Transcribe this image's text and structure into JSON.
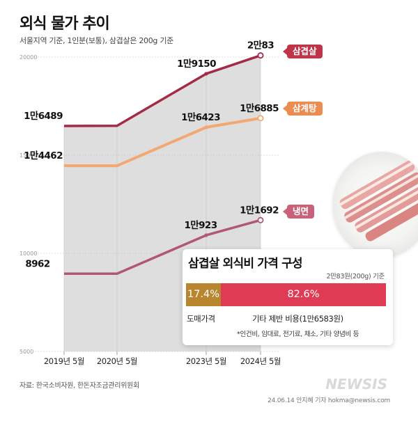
{
  "header": {
    "title": "외식 물가 추이",
    "subtitle": "서울지역 기준, 1인분(보통), 삼겹살은 200g 기준"
  },
  "chart_data": {
    "type": "line",
    "x": [
      "2019년 5월",
      "2020년 5월",
      "2023년 5월",
      "2024년 5월"
    ],
    "y_ticks": [
      "20000",
      "15000",
      "10000",
      "5000"
    ],
    "ylim": [
      5000,
      20000
    ],
    "grid": true,
    "series": [
      {
        "name": "삼겹살",
        "values": [
          16489,
          16500,
          19150,
          20083
        ],
        "labels": [
          "1만6489",
          "",
          "1만9150",
          "2만83"
        ],
        "color": "#a52a45"
      },
      {
        "name": "삼계탕",
        "values": [
          14462,
          14462,
          16423,
          16885
        ],
        "labels": [
          "1만4462",
          "",
          "1만6423",
          "1만6885"
        ],
        "color": "#f3a872"
      },
      {
        "name": "냉면",
        "values": [
          8962,
          8962,
          10923,
          11692
        ],
        "labels": [
          "8962",
          "",
          "1만923",
          "1만1692"
        ],
        "color": "#b05870"
      }
    ]
  },
  "breakdown": {
    "title": "삼겹살 외식비 가격 구성",
    "note": "2만83원(200g) 기준",
    "segments": [
      {
        "label": "17.4%",
        "value": 17.4,
        "color": "#b8862e",
        "caption": "도매가격"
      },
      {
        "label": "82.6%",
        "value": 82.6,
        "color": "#e03b55",
        "caption": "기타 제반 비용(1만6583원)"
      }
    ],
    "footnote": "*인건비, 임대료, 전기료, 채소, 기타 양념비 등"
  },
  "footer": {
    "source": "자료: 한국소비자원, 한돈자조금관리위원회",
    "credit": "24.06.14 안지혜 기자 hokma@newsis.com",
    "watermark": "NEWSIS"
  }
}
